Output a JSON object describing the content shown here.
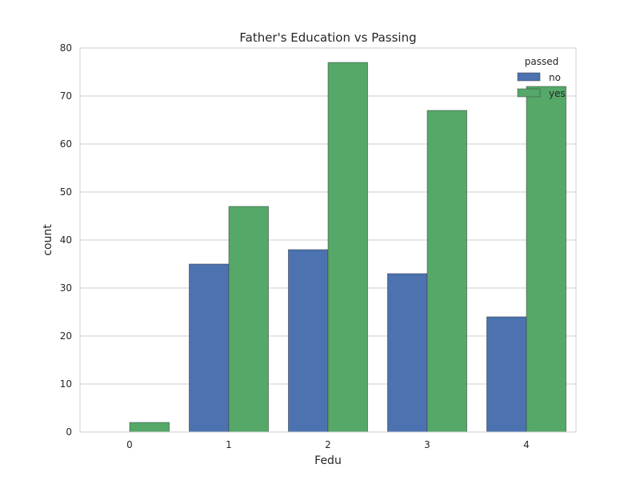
{
  "chart_data": {
    "type": "bar",
    "title": "Father's Education vs Passing",
    "xlabel": "Fedu",
    "ylabel": "count",
    "categories": [
      "0",
      "1",
      "2",
      "3",
      "4"
    ],
    "series": [
      {
        "name": "no",
        "values": [
          0,
          35,
          38,
          33,
          24
        ],
        "color": "#4c72b0"
      },
      {
        "name": "yes",
        "values": [
          2,
          47,
          77,
          67,
          72
        ],
        "color": "#55a868"
      }
    ],
    "ylim": [
      0,
      80
    ],
    "yticks": [
      "0",
      "10",
      "20",
      "30",
      "40",
      "50",
      "60",
      "70",
      "80"
    ],
    "grid": "horizontal",
    "legend": {
      "title": "passed",
      "placement": "top-right"
    }
  }
}
